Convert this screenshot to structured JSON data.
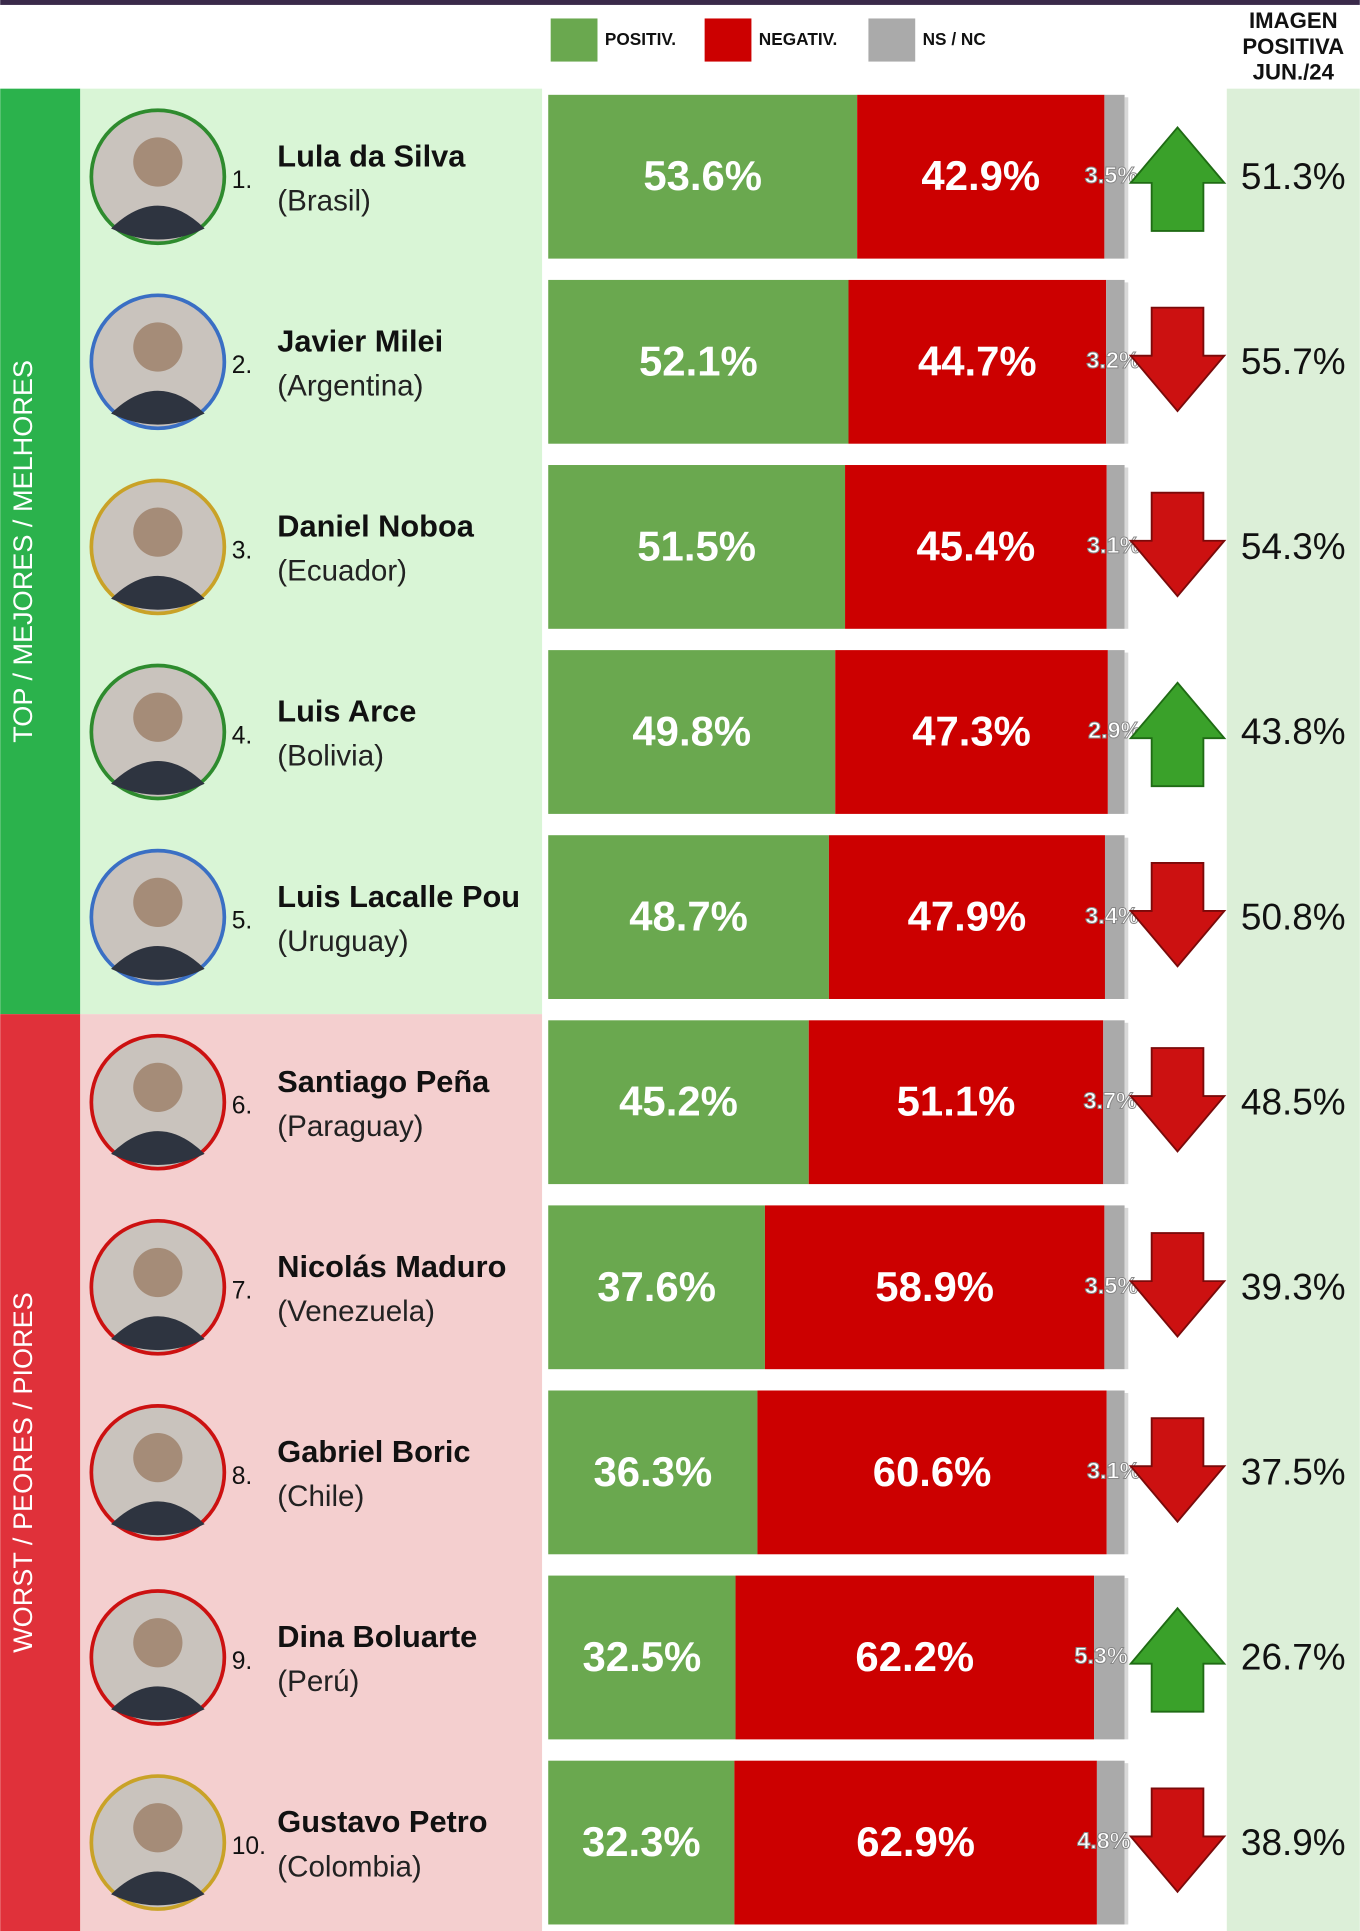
{
  "chart_data": {
    "type": "stacked-bar",
    "xlim": [
      0,
      100
    ],
    "categories": [
      "Lula da Silva",
      "Javier Milei",
      "Daniel Noboa",
      "Luis Arce",
      "Luis Lacalle Pou",
      "Santiago Peña",
      "Nicolás Maduro",
      "Gabriel Boric",
      "Dina Boluarte",
      "Gustavo Petro"
    ],
    "countries": [
      "(Brasil)",
      "(Argentina)",
      "(Ecuador)",
      "(Bolivia)",
      "(Uruguay)",
      "(Paraguay)",
      "(Venezuela)",
      "(Chile)",
      "(Perú)",
      "(Colombia)"
    ],
    "ranks": [
      "1.",
      "2.",
      "3.",
      "4.",
      "5.",
      "6.",
      "7.",
      "8.",
      "9.",
      "10."
    ],
    "series": [
      {
        "name": "POSITIV.",
        "color": "#6aa84f",
        "values": [
          53.6,
          52.1,
          51.5,
          49.8,
          48.7,
          45.2,
          37.6,
          36.3,
          32.5,
          32.3
        ],
        "value_labels": [
          "53.6%",
          "52.1%",
          "51.5%",
          "49.8%",
          "48.7%",
          "45.2%",
          "37.6%",
          "36.3%",
          "32.5%",
          "32.3%"
        ]
      },
      {
        "name": "NEGATIV.",
        "color": "#cc0000",
        "values": [
          42.9,
          44.7,
          45.4,
          47.3,
          47.9,
          51.1,
          58.9,
          60.6,
          62.2,
          62.9
        ],
        "value_labels": [
          "42.9%",
          "44.7%",
          "45.4%",
          "47.3%",
          "47.9%",
          "51.1%",
          "58.9%",
          "60.6%",
          "62.2%",
          "62.9%"
        ]
      },
      {
        "name": "NS / NC",
        "color": "#aaaaaa",
        "values": [
          3.5,
          3.2,
          3.1,
          2.9,
          3.4,
          3.7,
          3.5,
          3.1,
          5.3,
          4.8
        ],
        "value_labels": [
          "3.5%",
          "3.2%",
          "3.1%",
          "2.9%",
          "3.4%",
          "3.7%",
          "3.5%",
          "3.1%",
          "5.3%",
          "4.8%"
        ]
      }
    ],
    "previous": {
      "title": [
        "IMAGEN",
        "POSITIVA",
        "JUN./24"
      ],
      "values": [
        51.3,
        55.7,
        54.3,
        43.8,
        50.8,
        48.5,
        39.3,
        37.5,
        26.7,
        38.9
      ],
      "value_labels": [
        "51.3%",
        "55.7%",
        "54.3%",
        "43.8%",
        "50.8%",
        "48.5%",
        "39.3%",
        "37.5%",
        "26.7%",
        "38.9%"
      ],
      "up_color": "#3aa12a",
      "down_color": "#cc1111",
      "background": "#dcefd8"
    },
    "groups": [
      {
        "label": "TOP / MEJORES / MELHORES",
        "size": 5,
        "color": "#2bb24c",
        "background": "#d9f5d6"
      },
      {
        "label": "WORST / PEORES / PIORES",
        "size": 5,
        "color": "#e0313a",
        "background": "#f4cfcf"
      }
    ]
  }
}
